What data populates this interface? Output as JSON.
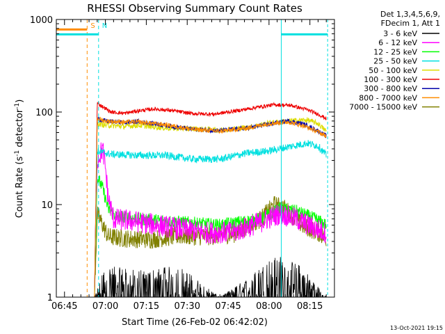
{
  "chart_data": {
    "type": "line",
    "title": "RHESSI Observing Summary Count Rates",
    "xlabel": "Start Time (26-Feb-02 06:42:02)",
    "ylabel": "Count Rate (s",
    "ylabel_sup1": "-1",
    "ylabel_mid": " detector",
    "ylabel_sup2": "-1",
    "ylabel_end": ")",
    "yscale": "log",
    "ylim": [
      1,
      1000
    ],
    "xlim_minutes": [
      0,
      102
    ],
    "x_ticks": [
      {
        "minute": 3,
        "label": "06:45"
      },
      {
        "minute": 18,
        "label": "07:00"
      },
      {
        "minute": 33,
        "label": "07:15"
      },
      {
        "minute": 48,
        "label": "07:30"
      },
      {
        "minute": 63,
        "label": "07:45"
      },
      {
        "minute": 78,
        "label": "08:00"
      },
      {
        "minute": 93,
        "label": "08:15"
      }
    ],
    "y_ticks": [
      {
        "value": 1,
        "label": "1"
      },
      {
        "value": 10,
        "label": "10"
      },
      {
        "value": 100,
        "label": "100"
      },
      {
        "value": 1000,
        "label": "1000"
      }
    ],
    "legend_header": [
      "Det 1,3,4,5,6,9,",
      "FDecim 1, Att 1"
    ],
    "legend_position": "right",
    "timestamp": "13-Oct-2021 19:15",
    "markers": [
      {
        "label": "S",
        "color": "#ff8c00",
        "minute": 11.3,
        "bar_end": 11.3,
        "dashed": true
      },
      {
        "label": "N",
        "color": "#00e0e0",
        "minute": 15.5,
        "bar_end": 15.5,
        "dashed": true
      }
    ],
    "saa_bars": [
      {
        "color": "#ff8c00",
        "level": 780,
        "x_from": 0,
        "x_to": 11.3
      },
      {
        "color": "#00e0e0",
        "level": 690,
        "x_from": 0,
        "x_to": 15.5
      },
      {
        "color": "#00e0e0",
        "level": 690,
        "x_from": 82.5,
        "x_to": 99.5
      }
    ],
    "vlines": [
      {
        "minute": 0,
        "color": "#00e0e0",
        "dashed": false
      },
      {
        "minute": 82.5,
        "color": "#00e0e0",
        "dashed": false
      },
      {
        "minute": 99.5,
        "color": "#00e0e0",
        "dashed": true
      }
    ],
    "data_range_minutes": [
      14,
      99
    ],
    "series": [
      {
        "name": "3 - 6 keV",
        "color": "#000000",
        "points": [
          [
            14,
            1
          ],
          [
            18,
            2
          ],
          [
            30,
            1.8
          ],
          [
            45,
            2
          ],
          [
            60,
            1
          ],
          [
            70,
            1.5
          ],
          [
            78,
            2.3
          ],
          [
            82,
            2.5
          ],
          [
            90,
            2
          ],
          [
            99,
            1
          ]
        ],
        "noise": 0.6
      },
      {
        "name": "6 - 12 keV",
        "color": "#ff00ff",
        "points": [
          [
            14,
            1
          ],
          [
            15,
            30
          ],
          [
            17,
            40
          ],
          [
            18,
            25
          ],
          [
            19,
            12
          ],
          [
            21,
            7
          ],
          [
            30,
            6.5
          ],
          [
            45,
            5.5
          ],
          [
            55,
            5
          ],
          [
            65,
            5
          ],
          [
            75,
            6.5
          ],
          [
            82,
            8
          ],
          [
            88,
            7
          ],
          [
            95,
            5.5
          ],
          [
            99,
            5
          ]
        ],
        "noise": 0.12
      },
      {
        "name": "12 - 25 keV",
        "color": "#00ff00",
        "points": [
          [
            14,
            1
          ],
          [
            15,
            20
          ],
          [
            17,
            15
          ],
          [
            19,
            9
          ],
          [
            22,
            7.5
          ],
          [
            30,
            7
          ],
          [
            45,
            6.5
          ],
          [
            60,
            6
          ],
          [
            75,
            7
          ],
          [
            82,
            9
          ],
          [
            88,
            8.5
          ],
          [
            95,
            7
          ],
          [
            99,
            6
          ]
        ],
        "noise": 0.07
      },
      {
        "name": "25 - 50 keV",
        "color": "#00e0e0",
        "points": [
          [
            14,
            1
          ],
          [
            15,
            38
          ],
          [
            20,
            35
          ],
          [
            30,
            34
          ],
          [
            40,
            34
          ],
          [
            50,
            31
          ],
          [
            60,
            31
          ],
          [
            70,
            36
          ],
          [
            78,
            38
          ],
          [
            85,
            42
          ],
          [
            92,
            46
          ],
          [
            96,
            43
          ],
          [
            99,
            34
          ]
        ],
        "noise": 0.04
      },
      {
        "name": "50 - 100 keV",
        "color": "#dddd00",
        "points": [
          [
            14,
            1
          ],
          [
            15,
            75
          ],
          [
            18,
            72
          ],
          [
            25,
            70
          ],
          [
            30,
            72
          ],
          [
            40,
            67
          ],
          [
            50,
            66
          ],
          [
            60,
            64
          ],
          [
            70,
            68
          ],
          [
            78,
            76
          ],
          [
            85,
            80
          ],
          [
            92,
            82
          ],
          [
            96,
            75
          ],
          [
            99,
            62
          ]
        ],
        "noise": 0.03
      },
      {
        "name": "100 - 300 keV",
        "color": "#ee0000",
        "points": [
          [
            14,
            1
          ],
          [
            15,
            125
          ],
          [
            20,
            100
          ],
          [
            25,
            97
          ],
          [
            30,
            103
          ],
          [
            36,
            108
          ],
          [
            42,
            104
          ],
          [
            50,
            96
          ],
          [
            58,
            95
          ],
          [
            66,
            103
          ],
          [
            74,
            113
          ],
          [
            80,
            120
          ],
          [
            86,
            118
          ],
          [
            92,
            106
          ],
          [
            96,
            95
          ],
          [
            99,
            85
          ]
        ],
        "noise": 0.02
      },
      {
        "name": "300 - 800 keV",
        "color": "#0000aa",
        "points": [
          [
            14,
            1
          ],
          [
            15,
            85
          ],
          [
            18,
            80
          ],
          [
            25,
            77
          ],
          [
            30,
            79
          ],
          [
            40,
            72
          ],
          [
            50,
            65
          ],
          [
            60,
            63
          ],
          [
            70,
            67
          ],
          [
            78,
            74
          ],
          [
            85,
            80
          ],
          [
            90,
            75
          ],
          [
            95,
            65
          ],
          [
            99,
            55
          ]
        ],
        "noise": 0.025
      },
      {
        "name": "800 - 7000 keV",
        "color": "#ff8c00",
        "points": [
          [
            14,
            1
          ],
          [
            15,
            85
          ],
          [
            18,
            80
          ],
          [
            25,
            78
          ],
          [
            30,
            78
          ],
          [
            40,
            73
          ],
          [
            50,
            65
          ],
          [
            60,
            62
          ],
          [
            70,
            67
          ],
          [
            78,
            75
          ],
          [
            85,
            78
          ],
          [
            90,
            72
          ],
          [
            95,
            63
          ],
          [
            99,
            55
          ]
        ],
        "noise": 0.025
      },
      {
        "name": "7000 - 15000 keV",
        "color": "#808000",
        "points": [
          [
            14,
            1
          ],
          [
            15,
            8
          ],
          [
            17,
            6
          ],
          [
            19,
            4.5
          ],
          [
            25,
            4.3
          ],
          [
            35,
            4.2
          ],
          [
            45,
            4.6
          ],
          [
            55,
            4.5
          ],
          [
            65,
            4.8
          ],
          [
            75,
            7
          ],
          [
            80,
            10
          ],
          [
            84,
            9
          ],
          [
            90,
            6
          ],
          [
            96,
            5
          ],
          [
            99,
            4.3
          ]
        ],
        "noise": 0.1
      }
    ]
  }
}
